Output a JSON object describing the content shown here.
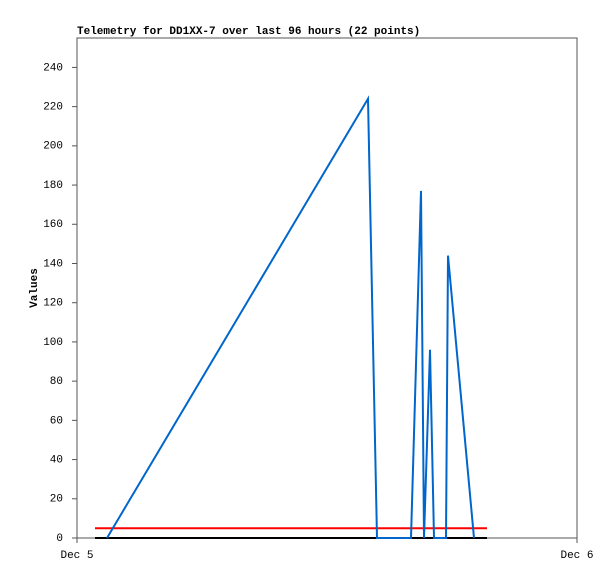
{
  "chart_data": {
    "type": "line",
    "title": "Telemetry for DD1XX-7 over last 96 hours (22 points)",
    "y_label": "Values",
    "xlim": [
      0,
      1
    ],
    "xticks": [
      {
        "value": 0,
        "label": "Dec 5"
      },
      {
        "value": 1,
        "label": "Dec 6"
      }
    ],
    "ylim": [
      0,
      255
    ],
    "yticks": [
      0,
      20,
      40,
      60,
      80,
      100,
      120,
      140,
      160,
      180,
      200,
      220,
      240
    ],
    "series": [
      {
        "color": "#000000",
        "x": [
          0.036,
          0.82
        ],
        "values": [
          0,
          0
        ]
      },
      {
        "color": "#ff0000",
        "x": [
          0.036,
          0.82
        ],
        "values": [
          5,
          5
        ]
      },
      {
        "color": "#0066cc",
        "x": [
          0.06,
          0.582,
          0.6,
          0.668,
          0.688,
          0.694,
          0.706,
          0.714,
          0.738,
          0.742,
          0.794
        ],
        "values": [
          0,
          224,
          0,
          0,
          177,
          0,
          96,
          0,
          0,
          144,
          0
        ]
      }
    ]
  }
}
